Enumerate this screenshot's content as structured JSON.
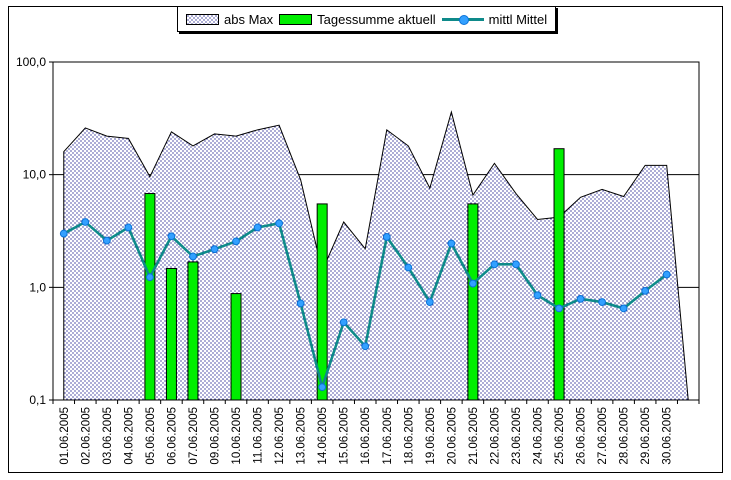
{
  "chart_data": {
    "type": "combo",
    "title": "",
    "legend_position": "top",
    "grid": true,
    "categories": [
      "01.06.2005",
      "02.06.2005",
      "03.06.2005",
      "04.06.2005",
      "05.06.2005",
      "06.06.2005",
      "07.06.2005",
      "09.06.2005",
      "10.06.2005",
      "11.06.2005",
      "12.06.2005",
      "13.06.2005",
      "14.06.2005",
      "15.06.2005",
      "16.06.2005",
      "17.06.2005",
      "18.06.2005",
      "19.06.2005",
      "20.06.2005",
      "21.06.2005",
      "22.06.2005",
      "23.06.2005",
      "24.06.2005",
      "25.06.2005",
      "26.06.2005",
      "27.06.2005",
      "28.06.2005",
      "29.06.2005",
      "30.06.2005",
      ""
    ],
    "y_axis": {
      "scale": "log",
      "min": 0.1,
      "max": 100,
      "tick_values": [
        100,
        10,
        1,
        0.1
      ],
      "tick_labels": [
        "100,0",
        "10,0",
        "1,0",
        "0,1"
      ]
    },
    "series": [
      {
        "name": "abs Max",
        "type": "area",
        "fill": "dotted-hatch",
        "dot_color": "#000080",
        "edge_color": "#000000",
        "values": [
          16,
          26,
          22,
          21,
          9.6,
          24,
          18,
          23,
          22,
          25,
          27.5,
          9,
          1.4,
          3.8,
          2.2,
          25,
          18,
          7.6,
          36,
          6.6,
          12.6,
          6.8,
          4.0,
          4.2,
          6.3,
          7.4,
          6.4,
          12.1,
          12.1,
          0.1
        ]
      },
      {
        "name": "Tagessumme aktuell",
        "type": "bar",
        "color": "#00ee00",
        "edge_color": "#000000",
        "values": [
          null,
          null,
          null,
          null,
          6.8,
          1.47,
          1.68,
          null,
          0.88,
          null,
          null,
          null,
          5.5,
          null,
          null,
          null,
          null,
          null,
          null,
          5.5,
          null,
          null,
          null,
          17,
          null,
          null,
          null,
          null,
          null,
          null
        ]
      },
      {
        "name": "mittl Mittel",
        "type": "line",
        "color": "#0e8a8a",
        "marker_color": "#33a0ff",
        "marker_edge": "#0b72d8",
        "values": [
          3.0,
          3.8,
          2.6,
          3.4,
          1.23,
          2.84,
          1.88,
          2.18,
          2.56,
          3.4,
          3.7,
          0.72,
          0.13,
          0.49,
          0.3,
          2.8,
          1.5,
          0.74,
          2.45,
          1.08,
          1.6,
          1.6,
          0.85,
          0.65,
          0.79,
          0.74,
          0.65,
          0.93,
          1.3,
          null
        ]
      }
    ]
  }
}
